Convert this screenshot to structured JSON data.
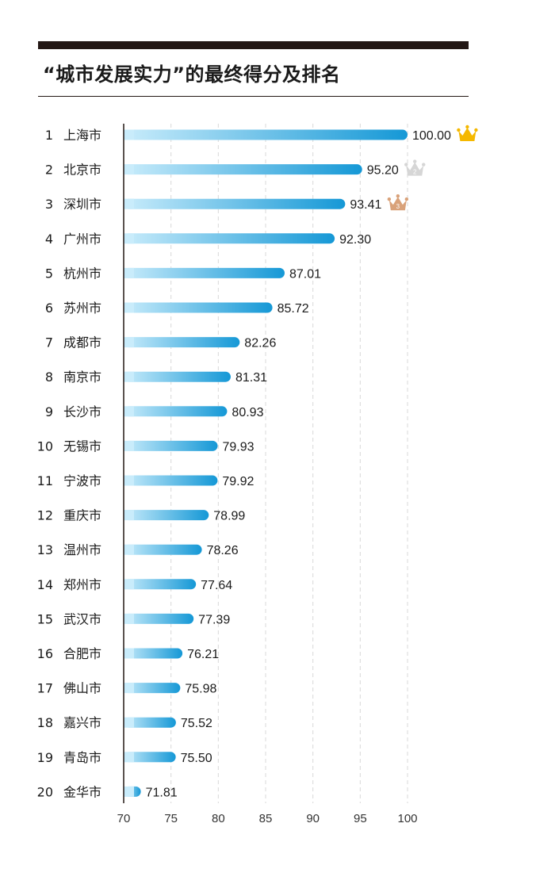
{
  "title": "“城市发展实力”的最终得分及排名",
  "colors": {
    "bar_start": "#c9ecfb",
    "bar_end": "#1598d6",
    "gold": "#f5b800",
    "silver": "#d6d6d6",
    "bronze": "#d9a27a",
    "axis": "#231815",
    "grid": "#d9d9d9"
  },
  "chart_data": {
    "type": "bar",
    "orientation": "horizontal",
    "title": "“城市发展实力”的最终得分及排名",
    "xlim": [
      70,
      100
    ],
    "xticks": [
      "70",
      "75",
      "80",
      "85",
      "90",
      "95",
      "100"
    ],
    "grid": "vertical-dashed",
    "ranks": [
      "1",
      "2",
      "3",
      "4",
      "5",
      "6",
      "7",
      "8",
      "9",
      "10",
      "11",
      "12",
      "13",
      "14",
      "15",
      "16",
      "17",
      "18",
      "19",
      "20"
    ],
    "categories": [
      "上海市",
      "北京市",
      "深圳市",
      "广州市",
      "杭州市",
      "苏州市",
      "成都市",
      "南京市",
      "长沙市",
      "无锡市",
      "宁波市",
      "重庆市",
      "温州市",
      "郑州市",
      "武汉市",
      "合肥市",
      "佛山市",
      "嘉兴市",
      "青岛市",
      "金华市"
    ],
    "values": [
      100.0,
      95.2,
      93.41,
      92.3,
      87.01,
      85.72,
      82.26,
      81.31,
      80.93,
      79.93,
      79.92,
      78.99,
      78.26,
      77.64,
      77.39,
      76.21,
      75.98,
      75.52,
      75.5,
      71.81
    ],
    "value_labels": [
      "100.00",
      "95.20",
      "93.41",
      "92.30",
      "87.01",
      "85.72",
      "82.26",
      "81.31",
      "80.93",
      "79.93",
      "79.92",
      "78.99",
      "78.26",
      "77.64",
      "77.39",
      "76.21",
      "75.98",
      "75.52",
      "75.50",
      "71.81"
    ],
    "crowns": [
      {
        "rank": 1,
        "color": "gold",
        "icon": "crown-icon",
        "label": ""
      },
      {
        "rank": 2,
        "color": "silver",
        "icon": "crown-icon",
        "label": "2"
      },
      {
        "rank": 3,
        "color": "bronze",
        "icon": "crown-icon",
        "label": "3"
      }
    ]
  }
}
